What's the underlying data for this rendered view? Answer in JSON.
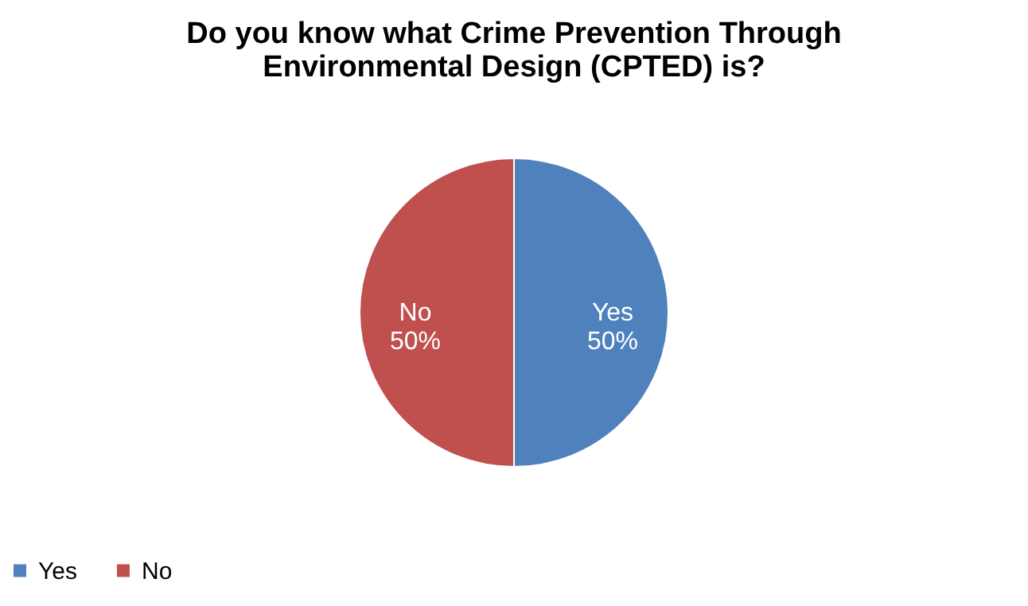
{
  "chart_data": {
    "type": "pie",
    "title": "Do you know what Crime Prevention Through Environmental Design (CPTED) is?",
    "categories": [
      "Yes",
      "No"
    ],
    "values": [
      50,
      50
    ],
    "colors": [
      "#4f81bd",
      "#c0504d"
    ],
    "value_labels": [
      "50%",
      "50%"
    ],
    "legend": "bottom"
  }
}
